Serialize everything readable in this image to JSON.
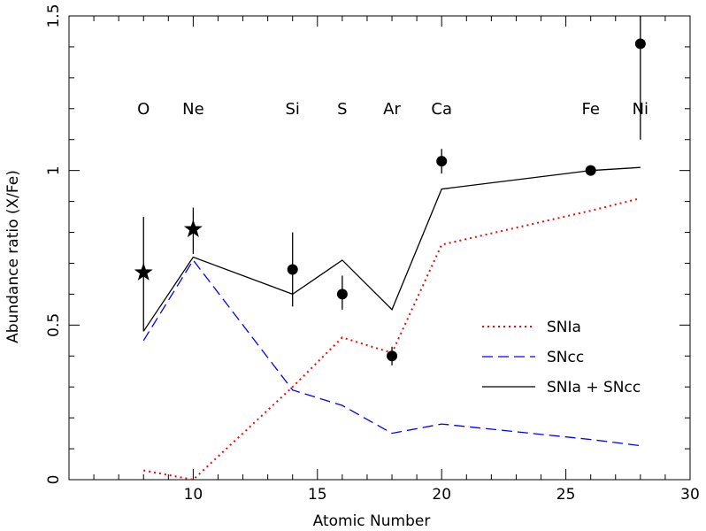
{
  "chart_data": {
    "type": "scatter",
    "title": "",
    "xlabel": "Atomic Number",
    "ylabel": "Abundance ratio (X/Fe)",
    "xlim": [
      5,
      30
    ],
    "ylim": [
      0,
      1.5
    ],
    "xticks": [
      10,
      15,
      20,
      25,
      30
    ],
    "yticks": [
      0,
      0.5,
      1,
      1.5
    ],
    "xtick_labels": [
      "10",
      "15",
      "20",
      "25",
      "30"
    ],
    "ytick_labels": [
      "0",
      "0.5",
      "1",
      "1.5"
    ],
    "element_labels": [
      {
        "text": "O",
        "x": 8
      },
      {
        "text": "Ne",
        "x": 10
      },
      {
        "text": "Si",
        "x": 14
      },
      {
        "text": "S",
        "x": 16
      },
      {
        "text": "Ar",
        "x": 18
      },
      {
        "text": "Ca",
        "x": 20
      },
      {
        "text": "Fe",
        "x": 26
      },
      {
        "text": "Ni",
        "x": 28
      }
    ],
    "element_label_y": 1.2,
    "points": [
      {
        "x": 8,
        "y": 0.67,
        "err_low": 0.48,
        "err_high": 0.85,
        "marker": "star"
      },
      {
        "x": 10,
        "y": 0.81,
        "err_low": 0.73,
        "err_high": 0.88,
        "marker": "star"
      },
      {
        "x": 14,
        "y": 0.68,
        "err_low": 0.56,
        "err_high": 0.8,
        "marker": "circle"
      },
      {
        "x": 16,
        "y": 0.6,
        "err_low": 0.55,
        "err_high": 0.66,
        "marker": "circle"
      },
      {
        "x": 18,
        "y": 0.4,
        "err_low": 0.37,
        "err_high": 0.43,
        "marker": "circle"
      },
      {
        "x": 20,
        "y": 1.03,
        "err_low": 0.99,
        "err_high": 1.07,
        "marker": "circle"
      },
      {
        "x": 26,
        "y": 1.0,
        "err_low": 0.99,
        "err_high": 1.01,
        "marker": "circle"
      },
      {
        "x": 28,
        "y": 1.41,
        "err_low": 1.1,
        "err_high": 1.72,
        "marker": "circle"
      }
    ],
    "series": [
      {
        "name": "SNIa",
        "color": "#ff0000",
        "style": "dotted",
        "x": [
          8,
          10,
          14,
          16,
          18,
          20,
          26,
          28
        ],
        "y": [
          0.03,
          0.0,
          0.3,
          0.46,
          0.41,
          0.76,
          0.87,
          0.91
        ]
      },
      {
        "name": "SNcc",
        "color": "#0000ff",
        "style": "dashed",
        "x": [
          8,
          10,
          14,
          16,
          18,
          20,
          26,
          28
        ],
        "y": [
          0.45,
          0.71,
          0.29,
          0.24,
          0.15,
          0.18,
          0.13,
          0.11
        ]
      },
      {
        "name": "SNIa + SNcc",
        "color": "#000000",
        "style": "solid",
        "x": [
          8,
          10,
          14,
          16,
          18,
          20,
          26,
          28
        ],
        "y": [
          0.48,
          0.72,
          0.6,
          0.71,
          0.55,
          0.94,
          1.0,
          1.01
        ]
      }
    ],
    "legend_position": "lower-right",
    "grid": false
  }
}
